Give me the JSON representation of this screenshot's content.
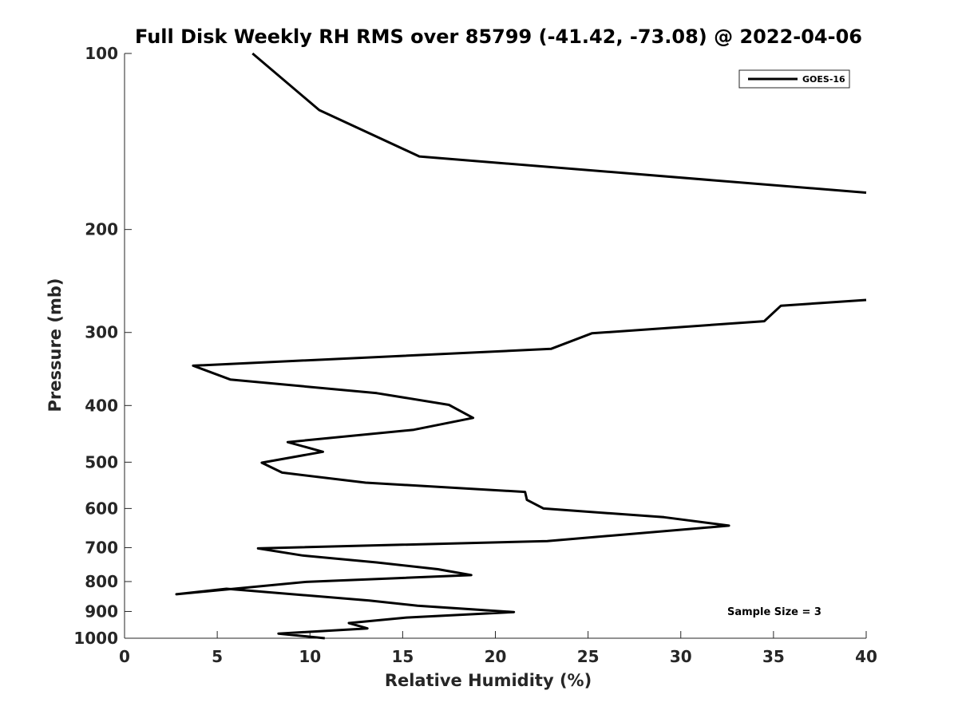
{
  "chart_data": {
    "type": "line",
    "title": "Full Disk Weekly RH RMS over 85799 (-41.42, -73.08) @ 2022-04-06",
    "xlabel": "Relative Humidity (%)",
    "ylabel": "Pressure (mb)",
    "xlim": [
      0,
      40
    ],
    "ylim": [
      100,
      1000
    ],
    "y_scale": "log",
    "y_reversed": true,
    "grid": false,
    "x_ticks": [
      0,
      5,
      10,
      15,
      20,
      25,
      30,
      35,
      40
    ],
    "y_ticks": [
      100,
      200,
      300,
      400,
      500,
      600,
      700,
      800,
      900,
      1000
    ],
    "legend": {
      "location": "top-right",
      "entries": [
        "GOES-16"
      ]
    },
    "annotations": [
      {
        "text": "Sample Size = 3",
        "x": 35,
        "y": 900
      }
    ],
    "series": [
      {
        "name": "GOES-16",
        "color": "#000000",
        "segments": [
          {
            "x": [
              6.9,
              10.5,
              15.9,
              40.0
            ],
            "y": [
              100,
              125,
              150,
              173
            ]
          },
          {
            "x": [
              40.0,
              35.4,
              34.5,
              25.2,
              23.0,
              3.7,
              5.7,
              13.6,
              17.5,
              18.8,
              15.6,
              8.8,
              10.7,
              7.4,
              8.5,
              13.0,
              21.6,
              21.7,
              22.6,
              29.1,
              32.6,
              22.8,
              7.2,
              9.6,
              13.6,
              16.9,
              18.7,
              9.8,
              2.8,
              5.5,
              13.2,
              15.8,
              21.0,
              15.2,
              12.1,
              13.1,
              8.3,
              10.8
            ],
            "y": [
              264,
              270,
              287,
              301,
              320,
              342,
              361,
              381,
              399,
              420,
              440,
              462,
              480,
              501,
              521,
              542,
              562,
              580,
              600,
              621,
              642,
              682,
              702,
              722,
              742,
              762,
              780,
              801,
              841,
              823,
              862,
              880,
              902,
              922,
              942,
              962,
              982,
              1000
            ]
          }
        ]
      }
    ]
  }
}
